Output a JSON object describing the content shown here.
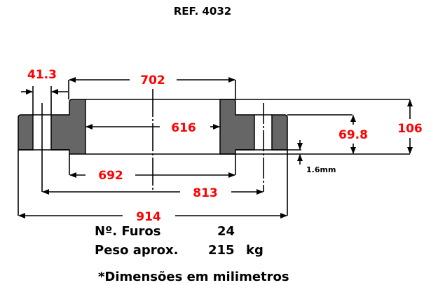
{
  "title": "REF. 4032",
  "dimensions": {
    "hole_spacing": "41.3",
    "hub_outer": "702",
    "bore": "616",
    "raised_face": "692",
    "bolt_circle": "813",
    "outer_diameter": "914",
    "flange_thickness": "69.8",
    "total_height": "106",
    "raised_face_height": "1.6mm"
  },
  "specs": {
    "holes_label": "Nº. Furos",
    "holes_value": "24",
    "weight_label": "Peso aprox.",
    "weight_value": "215",
    "weight_unit": "kg"
  },
  "note": "*Dimensões em milimetros",
  "colors": {
    "dimension_text": "#ff0000",
    "section_fill": "#666666"
  }
}
